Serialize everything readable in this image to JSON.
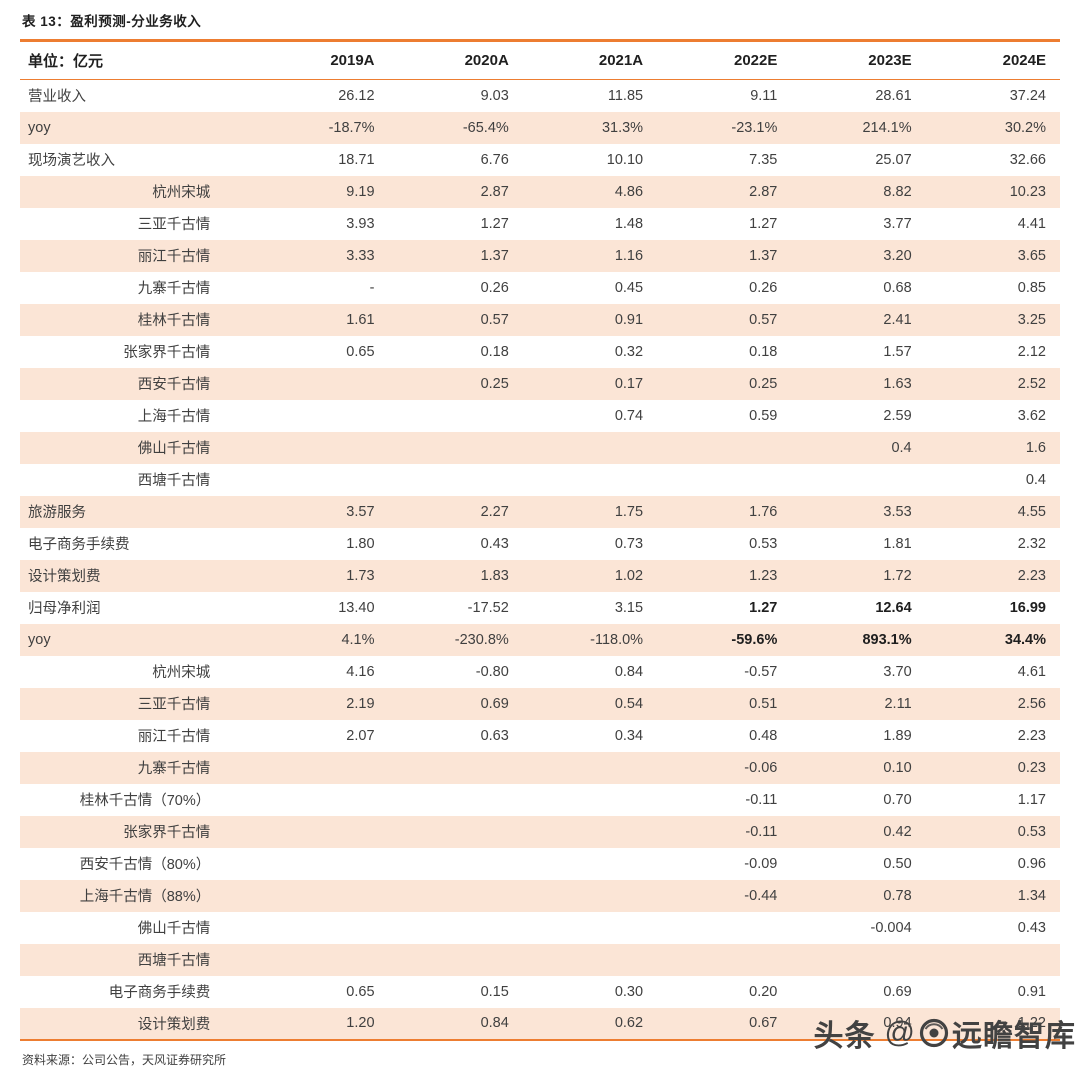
{
  "title": "表 13：盈利预测-分业务收入",
  "source": "资料来源：公司公告，天风证券研究所",
  "watermark": {
    "prefix": "头条",
    "at": "@",
    "brand": "远瞻智库",
    "logo": "circle-eye-logo"
  },
  "colors": {
    "accent": "#ED7D31",
    "stripe": "#FBE5D6",
    "text": "#404040"
  },
  "table": {
    "header": [
      "单位：亿元",
      "2019A",
      "2020A",
      "2021A",
      "2022E",
      "2023E",
      "2024E"
    ],
    "rows": [
      {
        "label": "营业收入",
        "sub": false,
        "values": [
          "26.12",
          "9.03",
          "11.85",
          "9.11",
          "28.61",
          "37.24"
        ]
      },
      {
        "label": "yoy",
        "sub": false,
        "values": [
          "-18.7%",
          "-65.4%",
          "31.3%",
          "-23.1%",
          "214.1%",
          "30.2%"
        ]
      },
      {
        "label": "现场演艺收入",
        "sub": false,
        "values": [
          "18.71",
          "6.76",
          "10.10",
          "7.35",
          "25.07",
          "32.66"
        ]
      },
      {
        "label": "杭州宋城",
        "sub": true,
        "values": [
          "9.19",
          "2.87",
          "4.86",
          "2.87",
          "8.82",
          "10.23"
        ]
      },
      {
        "label": "三亚千古情",
        "sub": true,
        "values": [
          "3.93",
          "1.27",
          "1.48",
          "1.27",
          "3.77",
          "4.41"
        ]
      },
      {
        "label": "丽江千古情",
        "sub": true,
        "values": [
          "3.33",
          "1.37",
          "1.16",
          "1.37",
          "3.20",
          "3.65"
        ]
      },
      {
        "label": "九寨千古情",
        "sub": true,
        "values": [
          "-",
          "0.26",
          "0.45",
          "0.26",
          "0.68",
          "0.85"
        ]
      },
      {
        "label": "桂林千古情",
        "sub": true,
        "values": [
          "1.61",
          "0.57",
          "0.91",
          "0.57",
          "2.41",
          "3.25"
        ]
      },
      {
        "label": "张家界千古情",
        "sub": true,
        "values": [
          "0.65",
          "0.18",
          "0.32",
          "0.18",
          "1.57",
          "2.12"
        ]
      },
      {
        "label": "西安千古情",
        "sub": true,
        "values": [
          "",
          "0.25",
          "0.17",
          "0.25",
          "1.63",
          "2.52"
        ]
      },
      {
        "label": "上海千古情",
        "sub": true,
        "values": [
          "",
          "",
          "0.74",
          "0.59",
          "2.59",
          "3.62"
        ]
      },
      {
        "label": "佛山千古情",
        "sub": true,
        "values": [
          "",
          "",
          "",
          "",
          "0.4",
          "1.6"
        ]
      },
      {
        "label": "西塘千古情",
        "sub": true,
        "values": [
          "",
          "",
          "",
          "",
          "",
          "0.4"
        ]
      },
      {
        "label": "旅游服务",
        "sub": false,
        "values": [
          "3.57",
          "2.27",
          "1.75",
          "1.76",
          "3.53",
          "4.55"
        ]
      },
      {
        "label": "电子商务手续费",
        "sub": false,
        "values": [
          "1.80",
          "0.43",
          "0.73",
          "0.53",
          "1.81",
          "2.32"
        ]
      },
      {
        "label": "设计策划费",
        "sub": false,
        "values": [
          "1.73",
          "1.83",
          "1.02",
          "1.23",
          "1.72",
          "2.23"
        ]
      },
      {
        "label": "归母净利润",
        "sub": false,
        "bold_cols": [
          3,
          4,
          5
        ],
        "values": [
          "13.40",
          "-17.52",
          "3.15",
          "1.27",
          "12.64",
          "16.99"
        ]
      },
      {
        "label": "yoy",
        "sub": false,
        "bold_cols": [
          3,
          4,
          5
        ],
        "values": [
          "4.1%",
          "-230.8%",
          "-118.0%",
          "-59.6%",
          "893.1%",
          "34.4%"
        ]
      },
      {
        "label": "杭州宋城",
        "sub": true,
        "values": [
          "4.16",
          "-0.80",
          "0.84",
          "-0.57",
          "3.70",
          "4.61"
        ]
      },
      {
        "label": "三亚千古情",
        "sub": true,
        "values": [
          "2.19",
          "0.69",
          "0.54",
          "0.51",
          "2.11",
          "2.56"
        ]
      },
      {
        "label": "丽江千古情",
        "sub": true,
        "values": [
          "2.07",
          "0.63",
          "0.34",
          "0.48",
          "1.89",
          "2.23"
        ]
      },
      {
        "label": "九寨千古情",
        "sub": true,
        "values": [
          "",
          "",
          "",
          "-0.06",
          "0.10",
          "0.23"
        ]
      },
      {
        "label": "桂林千古情（70%）",
        "sub": true,
        "values": [
          "",
          "",
          "",
          "-0.11",
          "0.70",
          "1.17"
        ]
      },
      {
        "label": "张家界千古情",
        "sub": true,
        "values": [
          "",
          "",
          "",
          "-0.11",
          "0.42",
          "0.53"
        ]
      },
      {
        "label": "西安千古情（80%）",
        "sub": true,
        "values": [
          "",
          "",
          "",
          "-0.09",
          "0.50",
          "0.96"
        ]
      },
      {
        "label": "上海千古情（88%）",
        "sub": true,
        "values": [
          "",
          "",
          "",
          "-0.44",
          "0.78",
          "1.34"
        ]
      },
      {
        "label": "佛山千古情",
        "sub": true,
        "values": [
          "",
          "",
          "",
          "",
          "-0.004",
          "0.43"
        ]
      },
      {
        "label": "西塘千古情",
        "sub": true,
        "values": [
          "",
          "",
          "",
          "",
          "",
          ""
        ]
      },
      {
        "label": "电子商务手续费",
        "sub": true,
        "values": [
          "0.65",
          "0.15",
          "0.30",
          "0.20",
          "0.69",
          "0.91"
        ]
      },
      {
        "label": "设计策划费",
        "sub": true,
        "values": [
          "1.20",
          "0.84",
          "0.62",
          "0.67",
          "0.94",
          "1.22"
        ]
      }
    ]
  }
}
